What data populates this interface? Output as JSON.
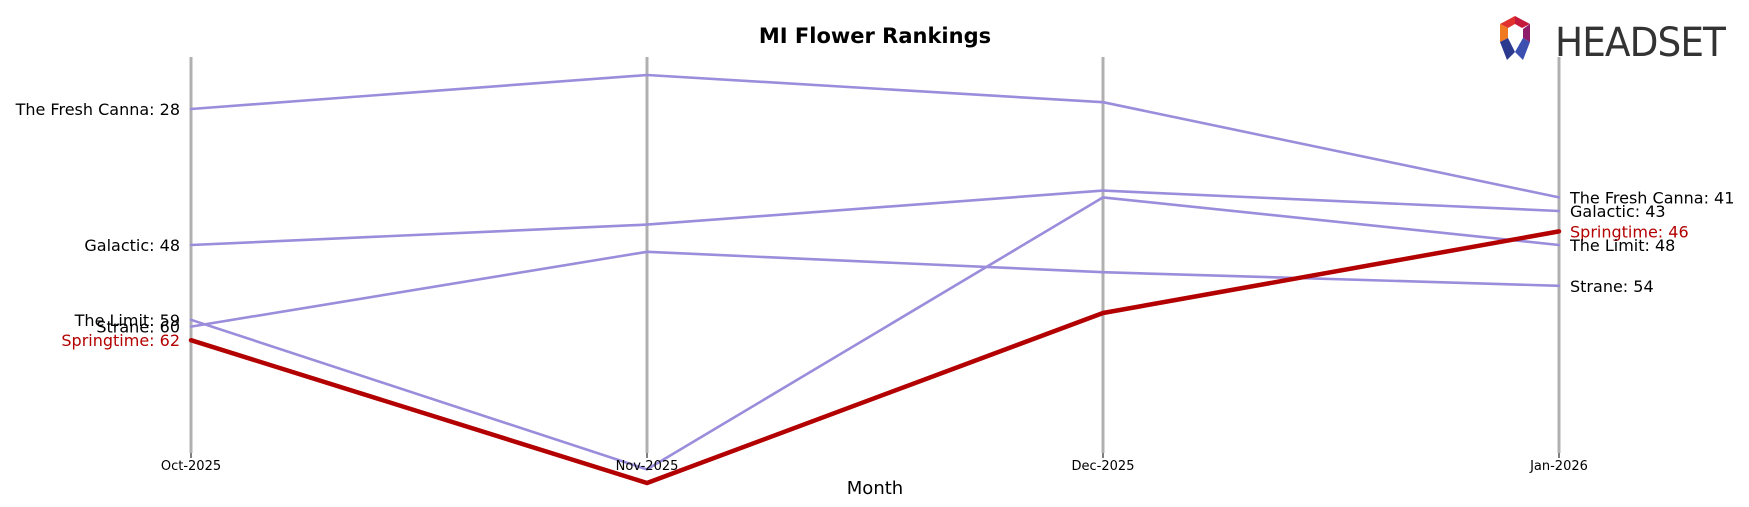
{
  "chart_data": {
    "type": "line",
    "title": "MI Flower Rankings",
    "xlabel": "Month",
    "ylabel": "",
    "categories": [
      "Oct-2025",
      "Nov-2025",
      "Dec-2025",
      "Jan-2026"
    ],
    "y_inverted": true,
    "ylim": [
      21,
      85
    ],
    "grid": "vertical lines at each month",
    "series": [
      {
        "name": "The Fresh Canna",
        "values": [
          28,
          23,
          27,
          41
        ],
        "color": "#9b8ddb",
        "highlight": false
      },
      {
        "name": "Galactic",
        "values": [
          48,
          45,
          40,
          43
        ],
        "color": "#9b8ddb",
        "highlight": false
      },
      {
        "name": "Strane",
        "values": [
          60,
          49,
          52,
          54
        ],
        "color": "#9b8ddb",
        "highlight": false
      },
      {
        "name": "The Limit",
        "values": [
          59,
          81,
          41,
          48
        ],
        "color": "#9b8ddb",
        "highlight": false
      },
      {
        "name": "Springtime",
        "values": [
          62,
          83,
          58,
          46
        ],
        "color": "#b30000",
        "highlight": true
      }
    ],
    "start_labels": [
      {
        "text": "The Fresh Canna: 28",
        "series": 0
      },
      {
        "text": "Galactic: 48",
        "series": 1
      },
      {
        "text": "The Limit: 59",
        "series": 3
      },
      {
        "text": "Strane: 60",
        "series": 2
      },
      {
        "text": "Springtime: 62",
        "series": 4
      }
    ],
    "end_labels": [
      {
        "text": "The Fresh Canna: 41",
        "series": 0
      },
      {
        "text": "Galactic: 43",
        "series": 1
      },
      {
        "text": "Springtime: 46",
        "series": 4
      },
      {
        "text": "The Limit: 48",
        "series": 3
      },
      {
        "text": "Strane: 54",
        "series": 2
      }
    ]
  },
  "logo": {
    "text": "HEADSET"
  },
  "colors": {
    "axis_line": "#b0b0b0",
    "highlight_text": "#b30000",
    "normal_text": "#000000"
  }
}
